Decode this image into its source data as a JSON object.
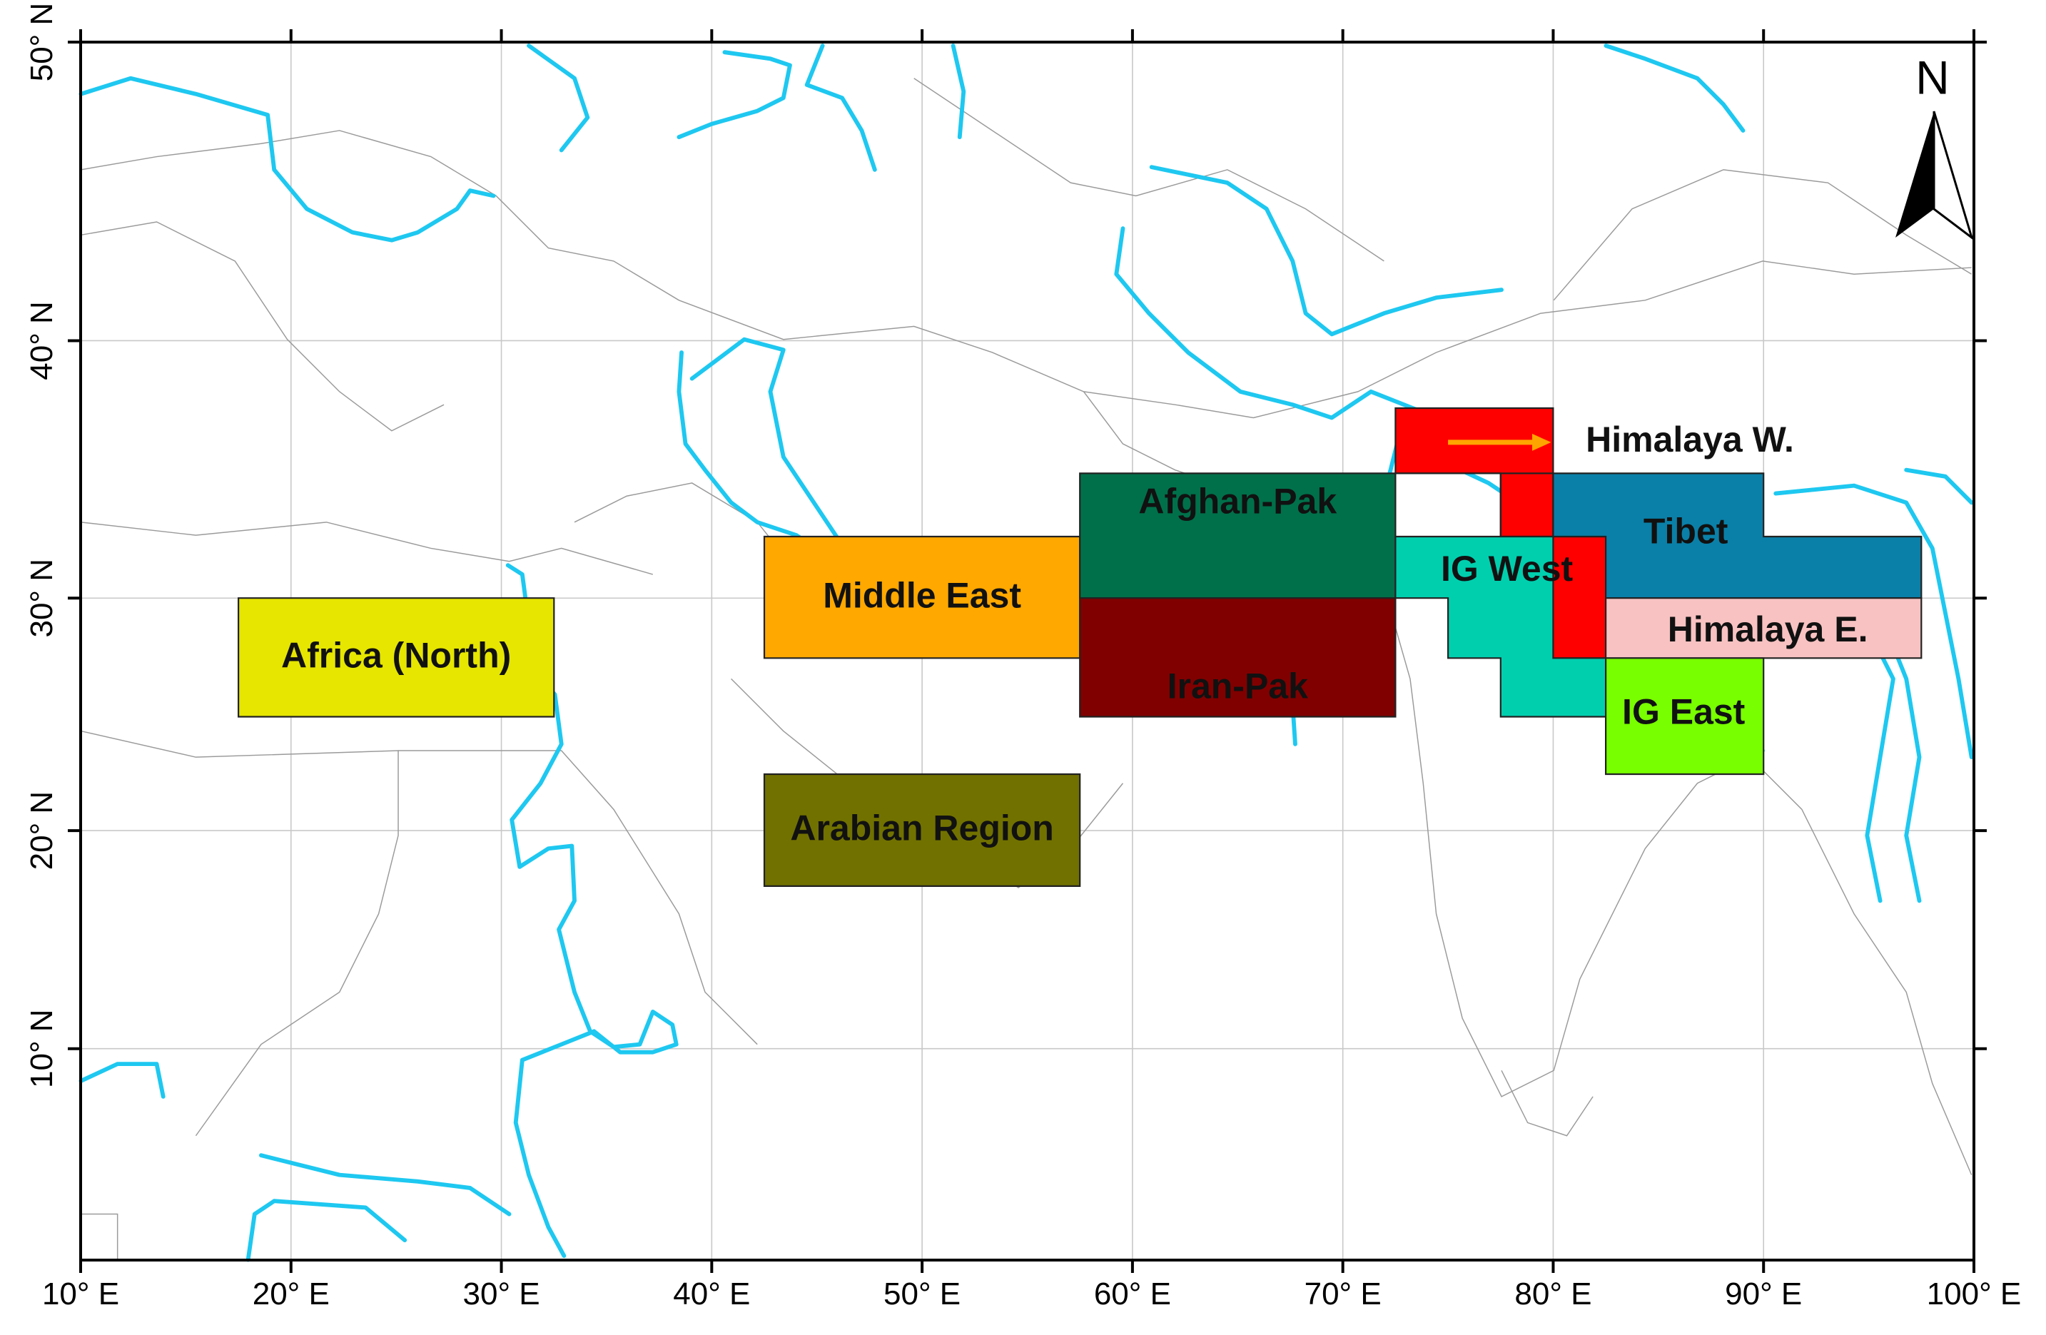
{
  "map": {
    "x_axis": {
      "lim": [
        10,
        100
      ],
      "ticks": [
        {
          "value": 10,
          "label": "10° E"
        },
        {
          "value": 20,
          "label": "20° E"
        },
        {
          "value": 30,
          "label": "30° E"
        },
        {
          "value": 40,
          "label": "40° E"
        },
        {
          "value": 50,
          "label": "50° E"
        },
        {
          "value": 60,
          "label": "60° E"
        },
        {
          "value": 70,
          "label": "70° E"
        },
        {
          "value": 80,
          "label": "80° E"
        },
        {
          "value": 90,
          "label": "90° E"
        },
        {
          "value": 100,
          "label": "100° E"
        }
      ]
    },
    "y_axis": {
      "lim": [
        0,
        50
      ],
      "ticks": [
        {
          "value": 10,
          "label": "10° N"
        },
        {
          "value": 20,
          "label": "20° N"
        },
        {
          "value": 30,
          "label": "30° N"
        },
        {
          "value": 40,
          "label": "40° N"
        },
        {
          "value": 50,
          "label": "50° N"
        }
      ]
    },
    "regions": [
      {
        "label": "Africa (North)",
        "color": "#e6e600"
      },
      {
        "label": "Middle East",
        "color": "#ffa800"
      },
      {
        "label": "Arabian Region",
        "color": "#717100"
      },
      {
        "label": "Afghan-Pak",
        "color": "#00704a"
      },
      {
        "label": "Iran-Pak",
        "color": "#800000"
      },
      {
        "label": "Himalaya W.",
        "color": "#ff0000"
      },
      {
        "label": "Tibet",
        "color": "#0a80a8"
      },
      {
        "label": "Himalaya E.",
        "color": "#f8c2c2"
      },
      {
        "label": "IG West",
        "color": "#00cfae"
      },
      {
        "label": "IG East",
        "color": "#78ff00"
      }
    ],
    "north_arrow": "N"
  }
}
